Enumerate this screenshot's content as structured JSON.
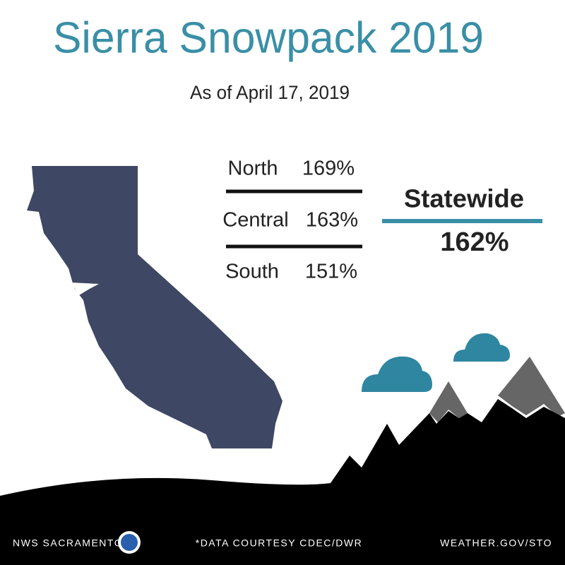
{
  "header": {
    "title": "Sierra Snowpack 2019",
    "subtitle": "As of April 17, 2019"
  },
  "regions": [
    {
      "name": "North",
      "value": "169%"
    },
    {
      "name": "Central",
      "value": "163%"
    },
    {
      "name": "South",
      "value": "151%"
    }
  ],
  "statewide": {
    "label": "Statewide",
    "value": "162%"
  },
  "footer": {
    "left": "NWS SACRAMENTO",
    "center": "*DATA COURTESY CDEC/DWR",
    "right": "WEATHER.GOV/STO"
  }
}
